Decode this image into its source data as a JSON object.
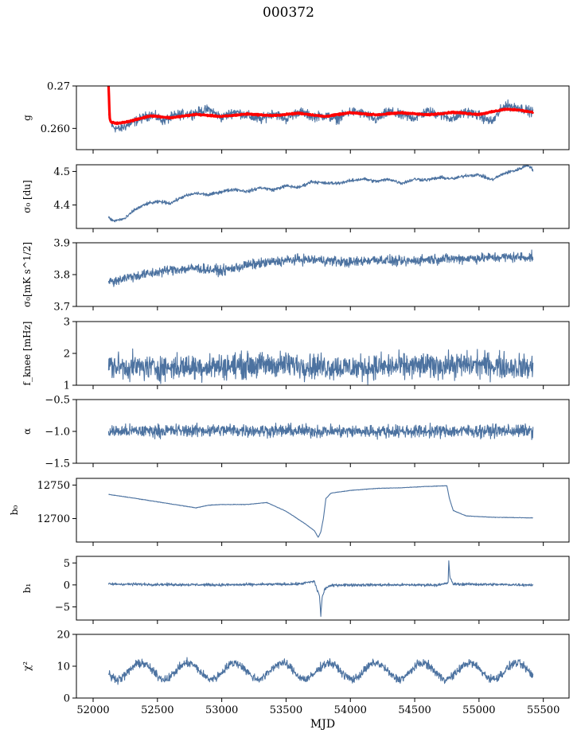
{
  "title": "000372",
  "colors": {
    "series": "#4c72a0",
    "fit": "#ff0000",
    "axes": "#000000"
  },
  "chart_data": [
    {
      "type": "line",
      "ylabel": "g",
      "ylim": [
        0.255,
        0.27
      ],
      "yticks": [
        0.26,
        0.27
      ],
      "ytick_labels": [
        "0.260",
        "0.27"
      ],
      "x_range": [
        52120,
        55420
      ],
      "series": [
        {
          "role": "data",
          "anchors": [
            [
              52120,
              0.263
            ],
            [
              52150,
              0.2605
            ],
            [
              52200,
              0.2598
            ],
            [
              52260,
              0.2607
            ],
            [
              52350,
              0.262
            ],
            [
              52450,
              0.2633
            ],
            [
              52550,
              0.2618
            ],
            [
              52650,
              0.2632
            ],
            [
              52780,
              0.2635
            ],
            [
              52900,
              0.2645
            ],
            [
              53000,
              0.2625
            ],
            [
              53100,
              0.264
            ],
            [
              53200,
              0.263
            ],
            [
              53300,
              0.262
            ],
            [
              53400,
              0.2637
            ],
            [
              53500,
              0.2622
            ],
            [
              53600,
              0.264
            ],
            [
              53700,
              0.2628
            ],
            [
              53800,
              0.263
            ],
            [
              53900,
              0.2622
            ],
            [
              54000,
              0.264
            ],
            [
              54100,
              0.2635
            ],
            [
              54200,
              0.262
            ],
            [
              54300,
              0.264
            ],
            [
              54400,
              0.263
            ],
            [
              54500,
              0.2625
            ],
            [
              54600,
              0.264
            ],
            [
              54700,
              0.2632
            ],
            [
              54800,
              0.2622
            ],
            [
              54900,
              0.264
            ],
            [
              55000,
              0.263
            ],
            [
              55100,
              0.2615
            ],
            [
              55200,
              0.2655
            ],
            [
              55300,
              0.265
            ],
            [
              55420,
              0.2638
            ]
          ],
          "noise": 0.0008
        },
        {
          "role": "fit",
          "anchors": [
            [
              52120,
              0.2705
            ],
            [
              52128,
              0.2625
            ],
            [
              52140,
              0.2614
            ],
            [
              52200,
              0.2612
            ],
            [
              52300,
              0.2618
            ],
            [
              52450,
              0.263
            ],
            [
              52600,
              0.2625
            ],
            [
              52800,
              0.2633
            ],
            [
              53000,
              0.2628
            ],
            [
              53200,
              0.2634
            ],
            [
              53400,
              0.263
            ],
            [
              53600,
              0.2636
            ],
            [
              53800,
              0.2628
            ],
            [
              54000,
              0.2637
            ],
            [
              54200,
              0.2632
            ],
            [
              54400,
              0.2637
            ],
            [
              54600,
              0.2632
            ],
            [
              54800,
              0.2638
            ],
            [
              55000,
              0.2633
            ],
            [
              55200,
              0.2645
            ],
            [
              55300,
              0.2644
            ],
            [
              55420,
              0.2638
            ]
          ],
          "noise": 0.0001
        }
      ]
    },
    {
      "type": "line",
      "ylabel": "σ₀ [du]",
      "ylim": [
        4.33,
        4.52
      ],
      "yticks": [
        4.4,
        4.5
      ],
      "ytick_labels": [
        "4.4",
        "4.5"
      ],
      "x_range": [
        52120,
        55420
      ],
      "series": [
        {
          "role": "data",
          "anchors": [
            [
              52120,
              4.362
            ],
            [
              52160,
              4.352
            ],
            [
              52250,
              4.36
            ],
            [
              52320,
              4.385
            ],
            [
              52420,
              4.404
            ],
            [
              52520,
              4.41
            ],
            [
              52600,
              4.405
            ],
            [
              52700,
              4.425
            ],
            [
              52800,
              4.435
            ],
            [
              52900,
              4.43
            ],
            [
              53000,
              4.44
            ],
            [
              53100,
              4.447
            ],
            [
              53200,
              4.44
            ],
            [
              53300,
              4.452
            ],
            [
              53400,
              4.445
            ],
            [
              53500,
              4.457
            ],
            [
              53600,
              4.452
            ],
            [
              53700,
              4.47
            ],
            [
              53800,
              4.465
            ],
            [
              53900,
              4.465
            ],
            [
              54000,
              4.472
            ],
            [
              54100,
              4.478
            ],
            [
              54200,
              4.47
            ],
            [
              54300,
              4.477
            ],
            [
              54400,
              4.465
            ],
            [
              54500,
              4.477
            ],
            [
              54600,
              4.475
            ],
            [
              54700,
              4.482
            ],
            [
              54800,
              4.478
            ],
            [
              54900,
              4.488
            ],
            [
              55000,
              4.49
            ],
            [
              55100,
              4.475
            ],
            [
              55200,
              4.495
            ],
            [
              55300,
              4.505
            ],
            [
              55380,
              4.52
            ],
            [
              55420,
              4.505
            ]
          ],
          "noise": 0.0035
        }
      ]
    },
    {
      "type": "line",
      "ylabel": "σ₀[mK s^1/2]",
      "ylim": [
        3.7,
        3.9
      ],
      "yticks": [
        3.7,
        3.8,
        3.9
      ],
      "ytick_labels": [
        "3.7",
        "3.8",
        "3.9"
      ],
      "x_range": [
        52120,
        55420
      ],
      "series": [
        {
          "role": "data",
          "anchors": [
            [
              52120,
              3.775
            ],
            [
              52250,
              3.79
            ],
            [
              52400,
              3.8
            ],
            [
              52600,
              3.815
            ],
            [
              52800,
              3.82
            ],
            [
              53000,
              3.812
            ],
            [
              53200,
              3.83
            ],
            [
              53400,
              3.84
            ],
            [
              53600,
              3.848
            ],
            [
              53800,
              3.845
            ],
            [
              54000,
              3.838
            ],
            [
              54200,
              3.848
            ],
            [
              54400,
              3.84
            ],
            [
              54600,
              3.848
            ],
            [
              54800,
              3.85
            ],
            [
              55000,
              3.852
            ],
            [
              55200,
              3.855
            ],
            [
              55420,
              3.855
            ]
          ],
          "noise": 0.011
        }
      ]
    },
    {
      "type": "line",
      "ylabel": "f_knee [mHz]",
      "ylim": [
        1,
        3
      ],
      "yticks": [
        1,
        2,
        3
      ],
      "ytick_labels": [
        "1",
        "2",
        "3"
      ],
      "x_range": [
        52120,
        55420
      ],
      "series": [
        {
          "role": "data",
          "anchors": [
            [
              52120,
              1.6
            ],
            [
              52500,
              1.55
            ],
            [
              53000,
              1.6
            ],
            [
              53500,
              1.65
            ],
            [
              54000,
              1.55
            ],
            [
              54500,
              1.6
            ],
            [
              55000,
              1.65
            ],
            [
              55420,
              1.55
            ]
          ],
          "noise": 0.28
        }
      ]
    },
    {
      "type": "line",
      "ylabel": "α",
      "ylim": [
        -1.5,
        -0.5
      ],
      "yticks": [
        -1.5,
        -1.0,
        -0.5
      ],
      "ytick_labels": [
        "−1.5",
        "−1.0",
        "−0.5"
      ],
      "x_range": [
        52120,
        55420
      ],
      "series": [
        {
          "role": "data",
          "anchors": [
            [
              52120,
              -1.0
            ],
            [
              53000,
              -0.98
            ],
            [
              54000,
              -1.0
            ],
            [
              55420,
              -0.99
            ]
          ],
          "noise": 0.07
        }
      ]
    },
    {
      "type": "line",
      "ylabel": "b₀",
      "ylim": [
        12665,
        12760
      ],
      "yticks": [
        12700,
        12750
      ],
      "ytick_labels": [
        "12700",
        "12750"
      ],
      "x_range": [
        52120,
        55420
      ],
      "series": [
        {
          "role": "data",
          "anchors": [
            [
              52120,
              12736
            ],
            [
              52300,
              12731
            ],
            [
              52500,
              12725
            ],
            [
              52700,
              12719
            ],
            [
              52800,
              12716
            ],
            [
              52900,
              12720
            ],
            [
              53000,
              12721
            ],
            [
              53200,
              12721
            ],
            [
              53350,
              12724
            ],
            [
              53500,
              12711
            ],
            [
              53650,
              12692
            ],
            [
              53720,
              12682
            ],
            [
              53750,
              12672
            ],
            [
              53770,
              12680
            ],
            [
              53790,
              12700
            ],
            [
              53810,
              12730
            ],
            [
              53850,
              12738
            ],
            [
              54000,
              12742
            ],
            [
              54200,
              12745
            ],
            [
              54400,
              12746
            ],
            [
              54600,
              12748
            ],
            [
              54750,
              12749
            ],
            [
              54770,
              12730
            ],
            [
              54800,
              12712
            ],
            [
              54900,
              12704
            ],
            [
              55100,
              12702
            ],
            [
              55420,
              12701
            ]
          ],
          "noise": 0.25
        }
      ]
    },
    {
      "type": "line",
      "ylabel": "b₁",
      "ylim": [
        -8,
        6.5
      ],
      "yticks": [
        -5,
        0,
        5
      ],
      "ytick_labels": [
        "−5",
        "0",
        "5"
      ],
      "x_range": [
        52120,
        55420
      ],
      "series": [
        {
          "role": "data",
          "anchors": [
            [
              52120,
              0.2
            ],
            [
              53000,
              0.0
            ],
            [
              53600,
              0.2
            ],
            [
              53720,
              0.8
            ],
            [
              53740,
              -1.0
            ],
            [
              53760,
              -2.5
            ],
            [
              53770,
              -7.0
            ],
            [
              53780,
              -3.0
            ],
            [
              53800,
              -1.0
            ],
            [
              53830,
              -0.3
            ],
            [
              53900,
              0.0
            ],
            [
              54700,
              0.0
            ],
            [
              54760,
              0.5
            ],
            [
              54765,
              5.5
            ],
            [
              54775,
              1.5
            ],
            [
              54800,
              0.2
            ],
            [
              55420,
              0.0
            ]
          ],
          "noise": 0.22
        }
      ]
    },
    {
      "type": "line",
      "ylabel": "χ²",
      "ylim": [
        0,
        20
      ],
      "yticks": [
        0,
        10,
        20
      ],
      "ytick_labels": [
        "0",
        "10",
        "20"
      ],
      "xlabel": "MJD",
      "xlim": [
        51870,
        55700
      ],
      "xticks": [
        52000,
        52500,
        53000,
        53500,
        54000,
        54500,
        55000,
        55500
      ],
      "xtick_labels": [
        "52000",
        "52500",
        "53000",
        "53500",
        "54000",
        "54500",
        "55000",
        "55500"
      ],
      "x_range": [
        52120,
        55420
      ],
      "series": [
        {
          "role": "data",
          "periodic": {
            "mean": 8.5,
            "amplitude": 2.5,
            "period": 365,
            "phase_mjd": 52280
          },
          "noise": 0.9
        }
      ]
    }
  ]
}
